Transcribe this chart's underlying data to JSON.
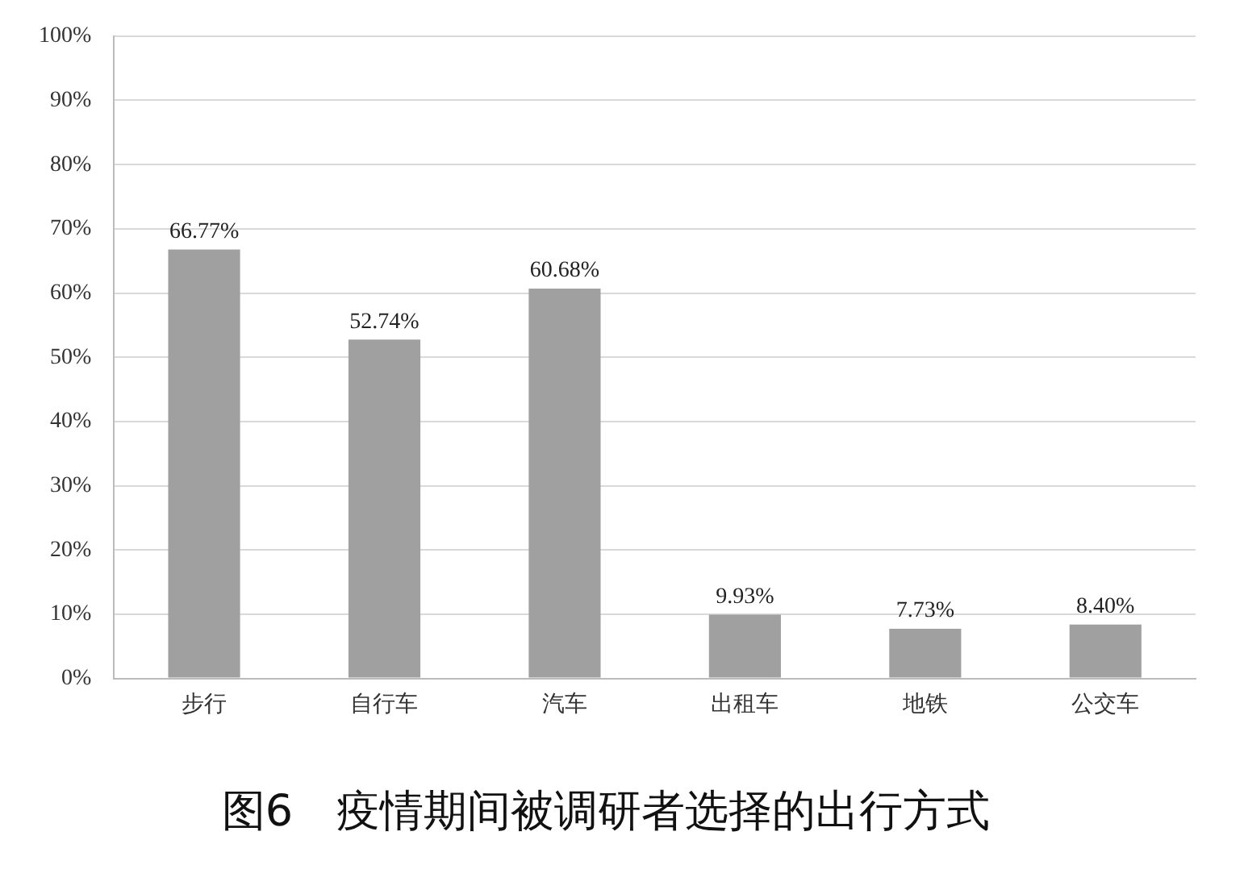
{
  "chart_data": {
    "type": "bar",
    "title": "图6　疫情期间被调研者选择的出行方式",
    "categories": [
      "步行",
      "自行车",
      "汽车",
      "出租车",
      "地铁",
      "公交车"
    ],
    "values": [
      66.77,
      52.74,
      60.68,
      9.93,
      7.73,
      8.4
    ],
    "value_labels": [
      "66.77%",
      "52.74%",
      "60.68%",
      "9.93%",
      "7.73%",
      "8.40%"
    ],
    "color": "#a0a0a0",
    "ylim": [
      0,
      100
    ],
    "yticks": [
      {
        "value": 0,
        "label": "0%"
      },
      {
        "value": 10,
        "label": "10%"
      },
      {
        "value": 20,
        "label": "20%"
      },
      {
        "value": 30,
        "label": "30%"
      },
      {
        "value": 40,
        "label": "40%"
      },
      {
        "value": 50,
        "label": "50%"
      },
      {
        "value": 60,
        "label": "60%"
      },
      {
        "value": 70,
        "label": "70%"
      },
      {
        "value": 80,
        "label": "80%"
      },
      {
        "value": 90,
        "label": "90%"
      },
      {
        "value": 100,
        "label": "100%"
      }
    ],
    "grid": "y"
  }
}
